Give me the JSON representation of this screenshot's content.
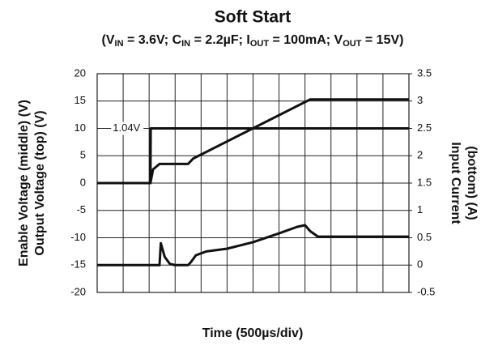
{
  "chart_data": {
    "type": "line",
    "title": "Soft Start",
    "subtitle": [
      "(V",
      "IN",
      " = 3.6V; C",
      "IN",
      " = 2.2µF; I",
      "OUT",
      " = 100mA; V",
      "OUT",
      " = 15V)"
    ],
    "xlabel": "Time (500µs/div)",
    "ylabel": [
      "Enable Voltage (middle) (V)",
      "Output Voltage (top) (V)"
    ],
    "y2label": [
      "Input Current",
      "(bottom) (A)"
    ],
    "xlim": [
      0,
      12
    ],
    "xticks": [
      0,
      1,
      2,
      3,
      4,
      5,
      6,
      7,
      8,
      9,
      10,
      11,
      12
    ],
    "ylim": [
      -20,
      20
    ],
    "yticks": [
      20,
      15,
      10,
      5,
      0,
      -5,
      -10,
      -15,
      -20
    ],
    "y2lim": [
      -0.5,
      3.5
    ],
    "y2ticks": [
      3.5,
      3,
      2.5,
      2,
      1.5,
      1,
      0.5,
      0,
      -0.5
    ],
    "grid": true,
    "annotations": [
      {
        "text": "1.04V",
        "x": 0.6,
        "y": 10
      }
    ],
    "series": [
      {
        "name": "Output Voltage",
        "color": "#111111",
        "x": [
          0,
          2.05,
          2.15,
          2.4,
          3.5,
          3.7,
          8.2,
          12
        ],
        "values": [
          0,
          0,
          2.5,
          3.5,
          3.5,
          4.5,
          15.3,
          15.3
        ]
      },
      {
        "name": "Enable Voltage",
        "color": "#111111",
        "x": [
          0,
          2.05,
          2.06,
          12
        ],
        "values": [
          0,
          0,
          10,
          10
        ]
      },
      {
        "name": "Input Current",
        "color": "#111111",
        "axis": "y2",
        "x": [
          0,
          2.2,
          2.4,
          2.45,
          2.6,
          2.8,
          3.0,
          3.5,
          3.6,
          3.8,
          4.2,
          5,
          6,
          7,
          7.7,
          8.0,
          8.2,
          8.5,
          12
        ],
        "values": [
          0,
          0,
          0,
          0.4,
          0.15,
          0.02,
          0,
          0,
          0.05,
          0.18,
          0.25,
          0.3,
          0.42,
          0.58,
          0.7,
          0.73,
          0.62,
          0.52,
          0.52
        ]
      }
    ]
  }
}
